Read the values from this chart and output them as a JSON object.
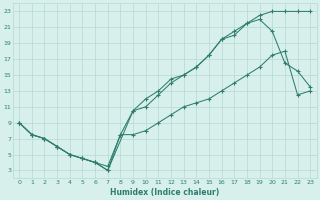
{
  "xlabel": "Humidex (Indice chaleur)",
  "bg_color": "#d8f0ec",
  "grid_color": "#b8d8d2",
  "line_color": "#2e7d6e",
  "xlim": [
    -0.5,
    23.5
  ],
  "ylim": [
    2,
    24
  ],
  "xticks": [
    0,
    1,
    2,
    3,
    4,
    5,
    6,
    7,
    8,
    9,
    10,
    11,
    12,
    13,
    14,
    15,
    16,
    17,
    18,
    19,
    20,
    21,
    22,
    23
  ],
  "yticks": [
    3,
    5,
    7,
    9,
    11,
    13,
    15,
    17,
    19,
    21,
    23
  ],
  "line1_x": [
    0,
    1,
    2,
    3,
    4,
    5,
    6,
    7,
    8,
    9,
    10,
    11,
    12,
    13,
    14,
    15,
    16,
    17,
    18,
    19,
    20,
    21,
    22,
    23
  ],
  "line1_y": [
    9,
    7.5,
    7,
    6,
    5,
    4.5,
    4,
    3.5,
    7.5,
    7.5,
    8,
    9,
    10,
    11,
    11.5,
    12,
    13,
    14,
    15,
    16,
    17.5,
    18,
    12.5,
    13
  ],
  "line2_x": [
    0,
    1,
    2,
    3,
    4,
    5,
    6,
    7,
    8,
    9,
    10,
    11,
    12,
    13,
    14,
    15,
    16,
    17,
    18,
    19,
    20,
    21,
    22,
    23
  ],
  "line2_y": [
    9,
    7.5,
    7,
    6,
    5,
    4.5,
    4,
    3,
    7.5,
    10.5,
    11,
    12.5,
    14,
    15,
    16,
    17.5,
    19.5,
    20,
    21.5,
    22,
    20.5,
    16.5,
    15.5,
    13.5
  ],
  "line3_x": [
    0,
    1,
    2,
    3,
    4,
    5,
    6,
    7,
    9,
    10,
    11,
    12,
    13,
    14,
    15,
    16,
    17,
    18,
    19,
    20,
    21,
    22,
    23
  ],
  "line3_y": [
    9,
    7.5,
    7,
    6,
    5,
    4.5,
    4,
    3,
    10.5,
    12,
    13,
    14.5,
    15,
    16,
    17.5,
    19.5,
    20.5,
    21.5,
    22.5,
    23,
    23,
    23,
    23
  ]
}
